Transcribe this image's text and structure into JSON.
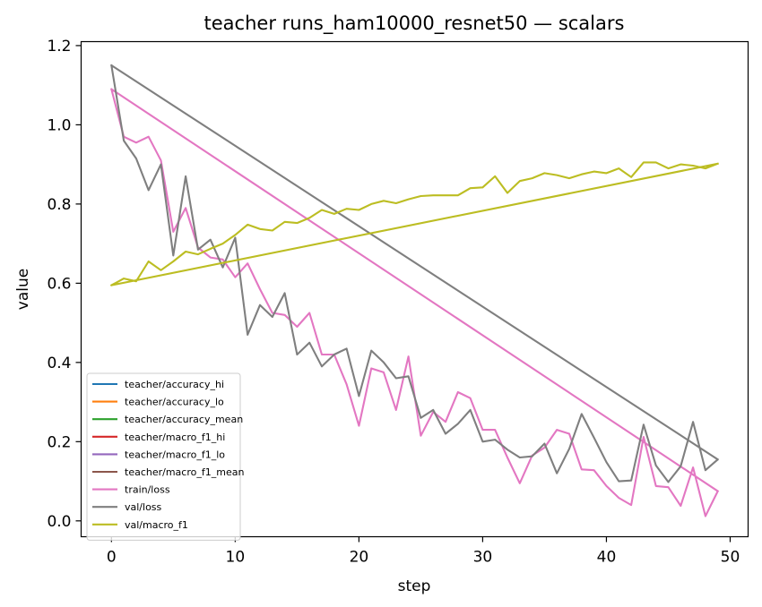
{
  "chart_data": {
    "type": "line",
    "title": "teacher runs_ham10000_resnet50 — scalars",
    "xlabel": "step",
    "ylabel": "value",
    "xlim": [
      -2.45,
      51.45
    ],
    "ylim": [
      -0.04,
      1.21
    ],
    "xticks": [
      0,
      10,
      20,
      30,
      40,
      50
    ],
    "xtick_labels": [
      "0",
      "10",
      "20",
      "30",
      "40",
      "50"
    ],
    "yticks": [
      0.0,
      0.2,
      0.4,
      0.6,
      0.8,
      1.0,
      1.2
    ],
    "ytick_labels": [
      "0.0",
      "0.2",
      "0.4",
      "0.6",
      "0.8",
      "1.0",
      "1.2"
    ],
    "grid": false,
    "legend_position": "lower-left",
    "series": [
      {
        "name": "teacher/accuracy_hi",
        "color": "#1f77b4",
        "x": [],
        "y": []
      },
      {
        "name": "teacher/accuracy_lo",
        "color": "#ff7f0e",
        "x": [],
        "y": []
      },
      {
        "name": "teacher/accuracy_mean",
        "color": "#2ca02c",
        "x": [],
        "y": []
      },
      {
        "name": "teacher/macro_f1_hi",
        "color": "#d62728",
        "x": [],
        "y": []
      },
      {
        "name": "teacher/macro_f1_lo",
        "color": "#9467bd",
        "x": [],
        "y": []
      },
      {
        "name": "teacher/macro_f1_mean",
        "color": "#8c564b",
        "x": [],
        "y": []
      },
      {
        "name": "train/loss",
        "color": "#e377c2",
        "x": [
          0,
          1,
          2,
          3,
          4,
          5,
          6,
          7,
          8,
          9,
          10,
          11,
          12,
          13,
          14,
          15,
          16,
          17,
          18,
          19,
          20,
          21,
          22,
          23,
          24,
          25,
          26,
          27,
          28,
          29,
          30,
          31,
          32,
          33,
          34,
          35,
          36,
          37,
          38,
          39,
          40,
          41,
          42,
          43,
          44,
          45,
          46,
          47,
          48,
          49,
          0,
          49
        ],
        "y": [
          1.09,
          0.97,
          0.955,
          0.97,
          0.91,
          0.73,
          0.79,
          0.69,
          0.665,
          0.66,
          0.615,
          0.65,
          0.585,
          0.525,
          0.52,
          0.49,
          0.525,
          0.42,
          0.42,
          0.345,
          0.24,
          0.385,
          0.375,
          0.28,
          0.415,
          0.215,
          0.275,
          0.25,
          0.325,
          0.31,
          0.23,
          0.23,
          0.16,
          0.095,
          0.165,
          0.185,
          0.23,
          0.22,
          0.13,
          0.128,
          0.088,
          0.058,
          0.04,
          0.212,
          0.088,
          0.085,
          0.038,
          0.135,
          0.012,
          0.075,
          1.09,
          0.075
        ]
      },
      {
        "name": "val/loss",
        "color": "#7f7f7f",
        "x": [
          0,
          1,
          2,
          3,
          4,
          5,
          6,
          7,
          8,
          9,
          10,
          11,
          12,
          13,
          14,
          15,
          16,
          17,
          18,
          19,
          20,
          21,
          22,
          23,
          24,
          25,
          26,
          27,
          28,
          29,
          30,
          31,
          32,
          33,
          34,
          35,
          36,
          37,
          38,
          39,
          40,
          41,
          42,
          43,
          44,
          45,
          46,
          47,
          48,
          49,
          0,
          49
        ],
        "y": [
          1.15,
          0.96,
          0.915,
          0.835,
          0.9,
          0.67,
          0.87,
          0.685,
          0.71,
          0.64,
          0.715,
          0.47,
          0.545,
          0.515,
          0.575,
          0.42,
          0.45,
          0.39,
          0.42,
          0.435,
          0.315,
          0.43,
          0.4,
          0.36,
          0.365,
          0.26,
          0.28,
          0.22,
          0.245,
          0.28,
          0.2,
          0.205,
          0.18,
          0.16,
          0.163,
          0.195,
          0.12,
          0.182,
          0.27,
          0.21,
          0.148,
          0.1,
          0.102,
          0.243,
          0.14,
          0.098,
          0.138,
          0.25,
          0.128,
          0.155,
          1.15,
          0.155
        ]
      },
      {
        "name": "val/macro_f1",
        "color": "#bcbd22",
        "x": [
          0,
          1,
          2,
          3,
          4,
          5,
          6,
          7,
          8,
          9,
          10,
          11,
          12,
          13,
          14,
          15,
          16,
          17,
          18,
          19,
          20,
          21,
          22,
          23,
          24,
          25,
          26,
          27,
          28,
          29,
          30,
          31,
          32,
          33,
          34,
          35,
          36,
          37,
          38,
          39,
          40,
          41,
          42,
          43,
          44,
          45,
          46,
          47,
          48,
          49,
          0,
          49
        ],
        "y": [
          0.595,
          0.612,
          0.605,
          0.655,
          0.633,
          0.655,
          0.68,
          0.673,
          0.687,
          0.7,
          0.722,
          0.748,
          0.737,
          0.733,
          0.755,
          0.752,
          0.765,
          0.785,
          0.775,
          0.788,
          0.785,
          0.8,
          0.808,
          0.802,
          0.812,
          0.82,
          0.822,
          0.822,
          0.822,
          0.84,
          0.842,
          0.87,
          0.828,
          0.858,
          0.865,
          0.878,
          0.873,
          0.865,
          0.875,
          0.882,
          0.878,
          0.89,
          0.868,
          0.905,
          0.905,
          0.89,
          0.9,
          0.897,
          0.89,
          0.902,
          0.595,
          0.902
        ]
      }
    ]
  }
}
